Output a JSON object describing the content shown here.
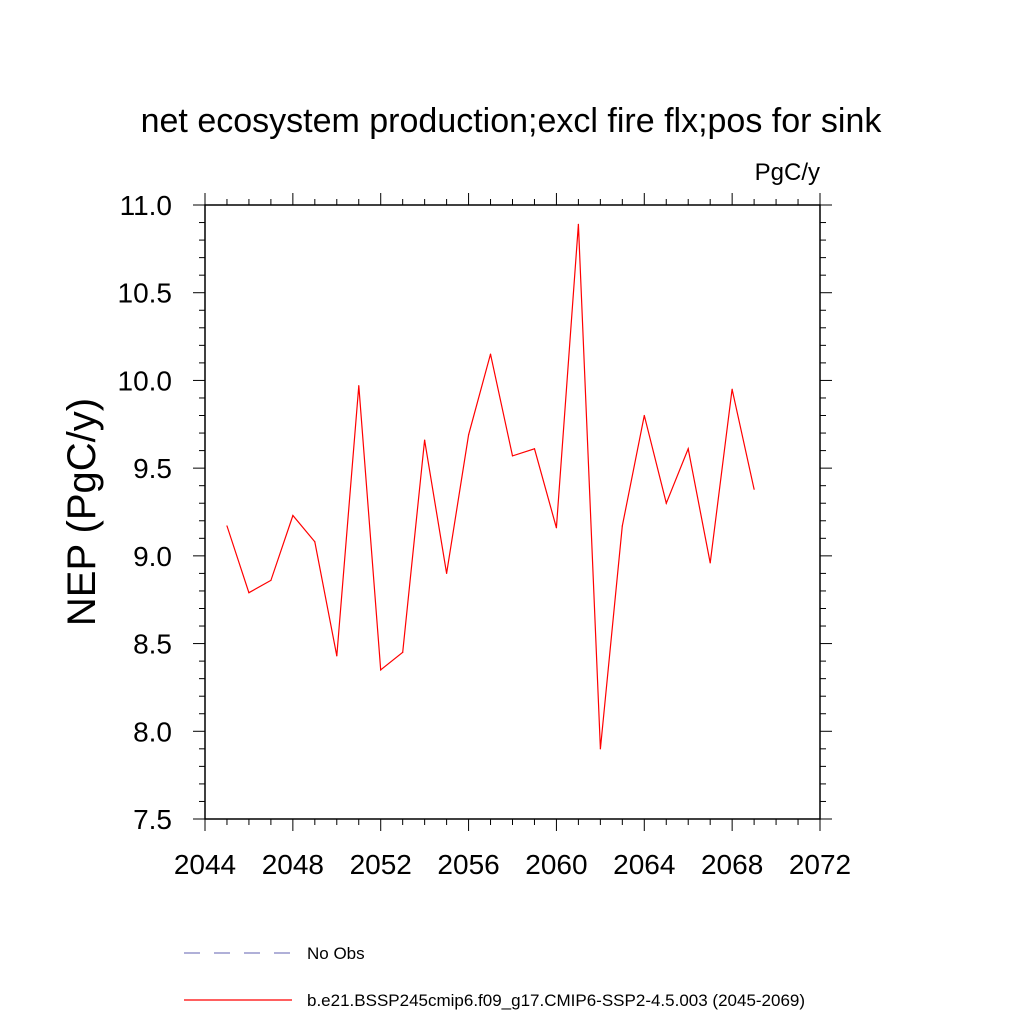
{
  "chart_data": {
    "type": "line",
    "title": "net ecosystem production;excl fire flx;pos for sink",
    "units": "PgC/y",
    "ylabel": "NEP  (PgC/y)",
    "xlabel": "",
    "xlim": [
      2044,
      2072
    ],
    "ylim": [
      7.5,
      11.0
    ],
    "x_ticks": [
      "2044",
      "2048",
      "2052",
      "2056",
      "2060",
      "2064",
      "2068",
      "2072"
    ],
    "y_ticks": [
      "7.5",
      "8.0",
      "8.5",
      "9.0",
      "9.5",
      "10.0",
      "10.5",
      "11.0"
    ],
    "grid": false,
    "series": [
      {
        "name": "b.e21.BSSP245cmip6.f09_g17.CMIP6-SSP2-4.5.003 (2045-2069)",
        "color": "#ff0000",
        "x": [
          2045,
          2046,
          2047,
          2048,
          2049,
          2050,
          2051,
          2052,
          2053,
          2054,
          2055,
          2056,
          2057,
          2058,
          2059,
          2060,
          2061,
          2062,
          2063,
          2064,
          2065,
          2066,
          2067,
          2068,
          2069
        ],
        "y": [
          9.17,
          8.79,
          8.86,
          9.23,
          9.08,
          8.43,
          9.97,
          8.35,
          8.45,
          9.66,
          8.9,
          9.69,
          10.15,
          9.57,
          9.61,
          9.16,
          10.89,
          7.9,
          9.17,
          9.8,
          9.3,
          9.61,
          8.96,
          9.95,
          9.38
        ]
      }
    ],
    "legend": [
      {
        "label": "No Obs",
        "style": "dashed",
        "color": "#8080c0"
      },
      {
        "label": "b.e21.BSSP245cmip6.f09_g17.CMIP6-SSP2-4.5.003 (2045-2069)",
        "style": "solid",
        "color": "#ff0000"
      }
    ],
    "legend_placement": "bottom"
  }
}
